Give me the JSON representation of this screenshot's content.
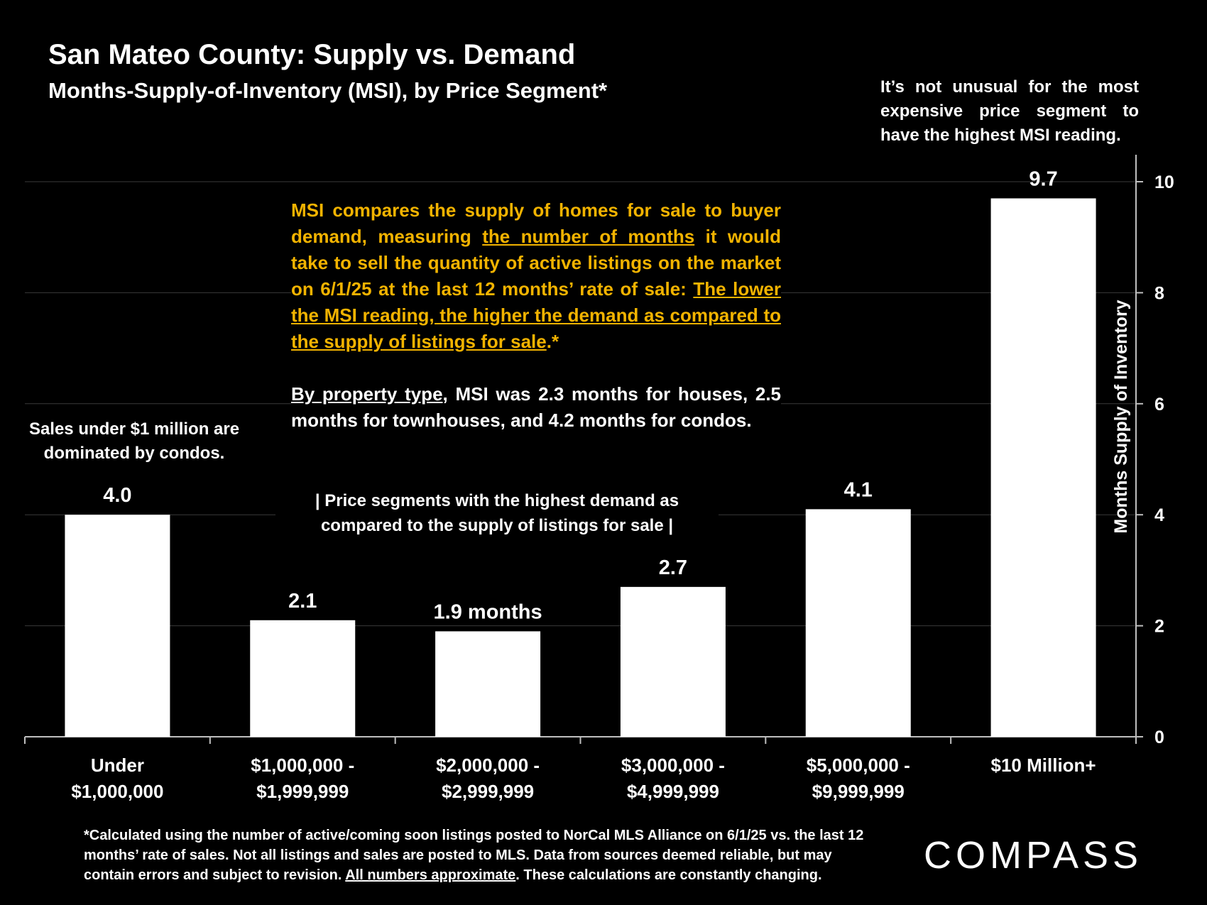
{
  "header": {
    "title": "San Mateo County: Supply vs. Demand",
    "subtitle": "Months-Supply-of-Inventory (MSI), by Price Segment*"
  },
  "annotations": {
    "top_right": "It’s not unusual for the most expensive price segment to have the highest MSI reading.",
    "left": "Sales under $1 million are dominated by condos.",
    "msi_part1": "MSI compares the supply of homes for sale to buyer demand, measuring ",
    "msi_underline1": "the number of months",
    "msi_part2": " it would take to sell the quantity of active listings on the market on 6/1/25 at the last 12 months’ rate of sale: ",
    "msi_underline2": "The lower the MSI reading, the higher the demand as compared to the supply of listings for sale",
    "msi_part3": ".*",
    "property_underline": "By property type",
    "property_rest": ", MSI was 2.3 months for houses, 2.5 months for townhouses, and 4.2 months for condos.",
    "highlight": "| Price segments with the highest demand as compared to the supply of listings for sale |"
  },
  "footnote": {
    "part1": "*Calculated using the number of active/coming soon listings posted to NorCal MLS Alliance on 6/1/25 vs. the last 12 months’ rate of sales. Not all listings and sales are posted to MLS. Data from sources deemed reliable, but may contain errors and subject to revision. ",
    "underline": "All numbers approximate",
    "part2": ". These calculations are constantly changing."
  },
  "logo": {
    "text": "COMPASS"
  },
  "colors": {
    "background": "#000000",
    "bar": "#ffffff",
    "accent": "#f2b300",
    "gridline": "#3a3a3a"
  },
  "chart_data": {
    "type": "bar",
    "categories": [
      [
        "Under",
        "$1,000,000"
      ],
      [
        "$1,000,000 -",
        "$1,999,999"
      ],
      [
        "$2,000,000 -",
        "$2,999,999"
      ],
      [
        "$3,000,000 -",
        "$4,999,999"
      ],
      [
        "$5,000,000 -",
        "$9,999,999"
      ],
      [
        "$10 Million+"
      ]
    ],
    "values": [
      4.0,
      2.1,
      1.9,
      2.7,
      4.1,
      9.7
    ],
    "data_labels": [
      "4.0",
      "2.1",
      "1.9 months",
      "2.7",
      "4.1",
      "9.7"
    ],
    "ylabel": "Months Supply of Inventory",
    "ylim": [
      0,
      10
    ],
    "yticks": [
      0,
      2,
      4,
      6,
      8,
      10
    ],
    "y_axis_side": "right",
    "grid": true
  }
}
